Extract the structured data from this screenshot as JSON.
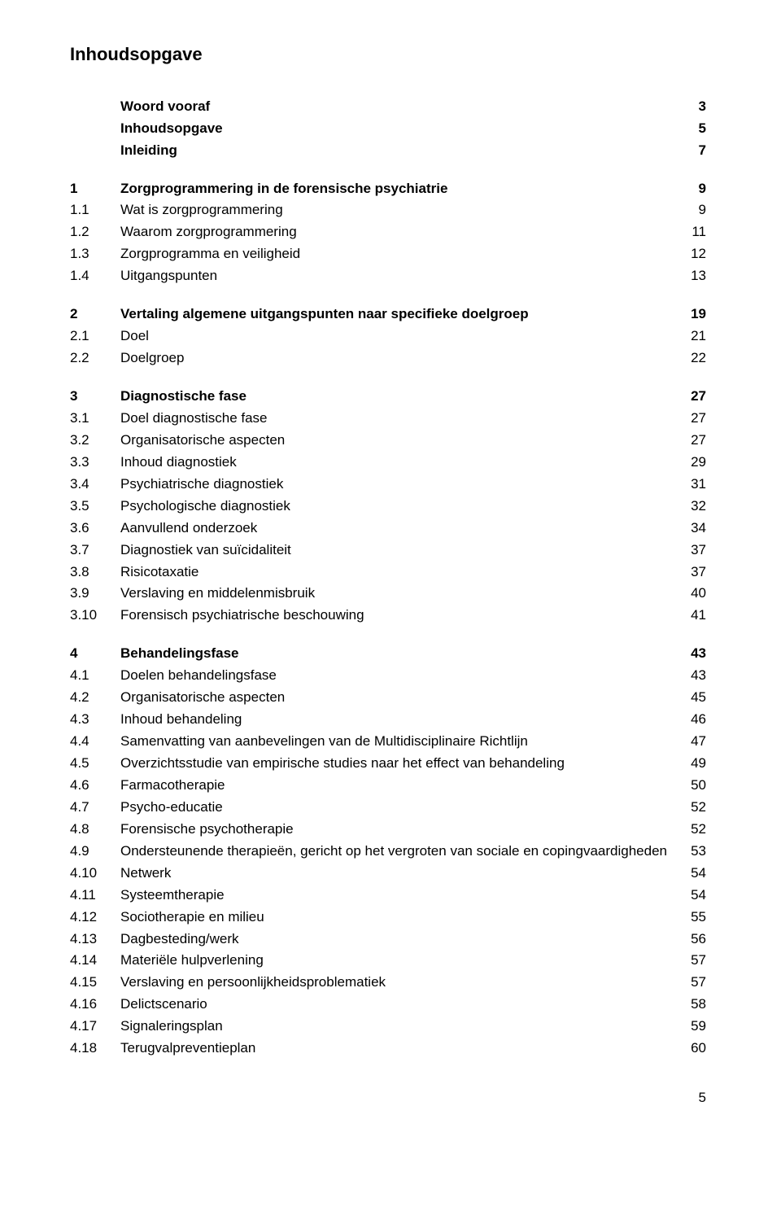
{
  "title": "Inhoudsopgave",
  "front_matter": [
    {
      "label": "Woord vooraf",
      "page": "3",
      "bold": true
    },
    {
      "label": "Inhoudsopgave",
      "page": "5",
      "bold": true
    },
    {
      "label": "Inleiding",
      "page": "7",
      "bold": true
    }
  ],
  "sections": [
    {
      "rows": [
        {
          "num": "1",
          "label": "Zorgprogrammering in de forensische psychiatrie",
          "page": "9",
          "bold": true
        },
        {
          "num": "1.1",
          "label": "Wat is zorgprogrammering",
          "page": "9"
        },
        {
          "num": "1.2",
          "label": "Waarom zorgprogrammering",
          "page": "11"
        },
        {
          "num": "1.3",
          "label": "Zorgprogramma en veiligheid",
          "page": "12"
        },
        {
          "num": "1.4",
          "label": "Uitgangspunten",
          "page": "13"
        }
      ]
    },
    {
      "rows": [
        {
          "num": "2",
          "label": "Vertaling algemene uitgangspunten naar specifieke doelgroep",
          "page": "19",
          "bold": true
        },
        {
          "num": "2.1",
          "label": "Doel",
          "page": "21"
        },
        {
          "num": "2.2",
          "label": "Doelgroep",
          "page": "22"
        }
      ]
    },
    {
      "rows": [
        {
          "num": "3",
          "label": "Diagnostische fase",
          "page": "27",
          "bold": true
        },
        {
          "num": "3.1",
          "label": "Doel diagnostische fase",
          "page": "27"
        },
        {
          "num": "3.2",
          "label": "Organisatorische aspecten",
          "page": "27"
        },
        {
          "num": "3.3",
          "label": "Inhoud diagnostiek",
          "page": "29"
        },
        {
          "num": "3.4",
          "label": "Psychiatrische diagnostiek",
          "page": "31"
        },
        {
          "num": "3.5",
          "label": "Psychologische diagnostiek",
          "page": "32"
        },
        {
          "num": "3.6",
          "label": "Aanvullend onderzoek",
          "page": "34"
        },
        {
          "num": "3.7",
          "label": "Diagnostiek van suïcidaliteit",
          "page": "37"
        },
        {
          "num": "3.8",
          "label": "Risicotaxatie",
          "page": "37"
        },
        {
          "num": "3.9",
          "label": "Verslaving en middelenmisbruik",
          "page": "40"
        },
        {
          "num": "3.10",
          "label": "Forensisch psychiatrische beschouwing",
          "page": "41"
        }
      ]
    },
    {
      "rows": [
        {
          "num": "4",
          "label": "Behandelingsfase",
          "page": "43",
          "bold": true
        },
        {
          "num": "4.1",
          "label": "Doelen behandelingsfase",
          "page": "43"
        },
        {
          "num": "4.2",
          "label": "Organisatorische aspecten",
          "page": "45"
        },
        {
          "num": "4.3",
          "label": "Inhoud behandeling",
          "page": "46"
        },
        {
          "num": "4.4",
          "label": "Samenvatting van aanbevelingen van de Multidisciplinaire Richtlijn",
          "page": "47"
        },
        {
          "num": "4.5",
          "label": "Overzichtsstudie van empirische studies naar het effect van behandeling",
          "page": "49"
        },
        {
          "num": "4.6",
          "label": "Farmacotherapie",
          "page": "50"
        },
        {
          "num": "4.7",
          "label": "Psycho-educatie",
          "page": "52"
        },
        {
          "num": "4.8",
          "label": "Forensische psychotherapie",
          "page": "52"
        },
        {
          "num": "4.9",
          "label": "Ondersteunende therapieën, gericht op het vergroten van sociale en copingvaardigheden",
          "page": "53"
        },
        {
          "num": "4.10",
          "label": "Netwerk",
          "page": "54"
        },
        {
          "num": "4.11",
          "label": "Systeemtherapie",
          "page": "54"
        },
        {
          "num": "4.12",
          "label": "Sociotherapie en milieu",
          "page": "55"
        },
        {
          "num": "4.13",
          "label": "Dagbesteding/werk",
          "page": "56"
        },
        {
          "num": "4.14",
          "label": "Materiële hulpverlening",
          "page": "57"
        },
        {
          "num": "4.15",
          "label": "Verslaving en persoonlijkheidsproblematiek",
          "page": "57"
        },
        {
          "num": "4.16",
          "label": "Delictscenario",
          "page": "58"
        },
        {
          "num": "4.17",
          "label": "Signaleringsplan",
          "page": "59"
        },
        {
          "num": "4.18",
          "label": "Terugvalpreventieplan",
          "page": "60"
        }
      ]
    }
  ],
  "page_number": "5"
}
